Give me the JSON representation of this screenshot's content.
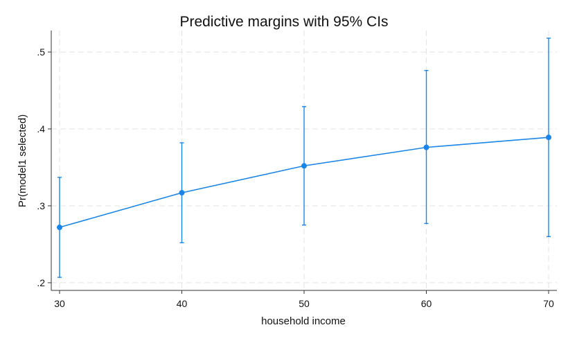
{
  "chart_data": {
    "type": "line",
    "title": "Predictive margins with 95% CIs",
    "xlabel": "household income",
    "ylabel": "Pr(model1 selected)",
    "x": [
      30,
      40,
      50,
      60,
      70
    ],
    "x_tick_labels": [
      "30",
      "40",
      "50",
      "60",
      "70"
    ],
    "xlim": [
      30,
      70
    ],
    "y_ticks": [
      0.2,
      0.3,
      0.4,
      0.5
    ],
    "y_tick_labels": [
      ".2",
      ".3",
      ".4",
      ".5"
    ],
    "ylim": [
      0.19,
      0.528
    ],
    "grid": true,
    "series": [
      {
        "values": [
          0.272,
          0.317,
          0.352,
          0.376,
          0.389
        ],
        "ci_lower": [
          0.207,
          0.252,
          0.275,
          0.277,
          0.26
        ],
        "ci_upper": [
          0.337,
          0.382,
          0.429,
          0.476,
          0.518
        ],
        "color": "#1a85e8"
      }
    ]
  }
}
